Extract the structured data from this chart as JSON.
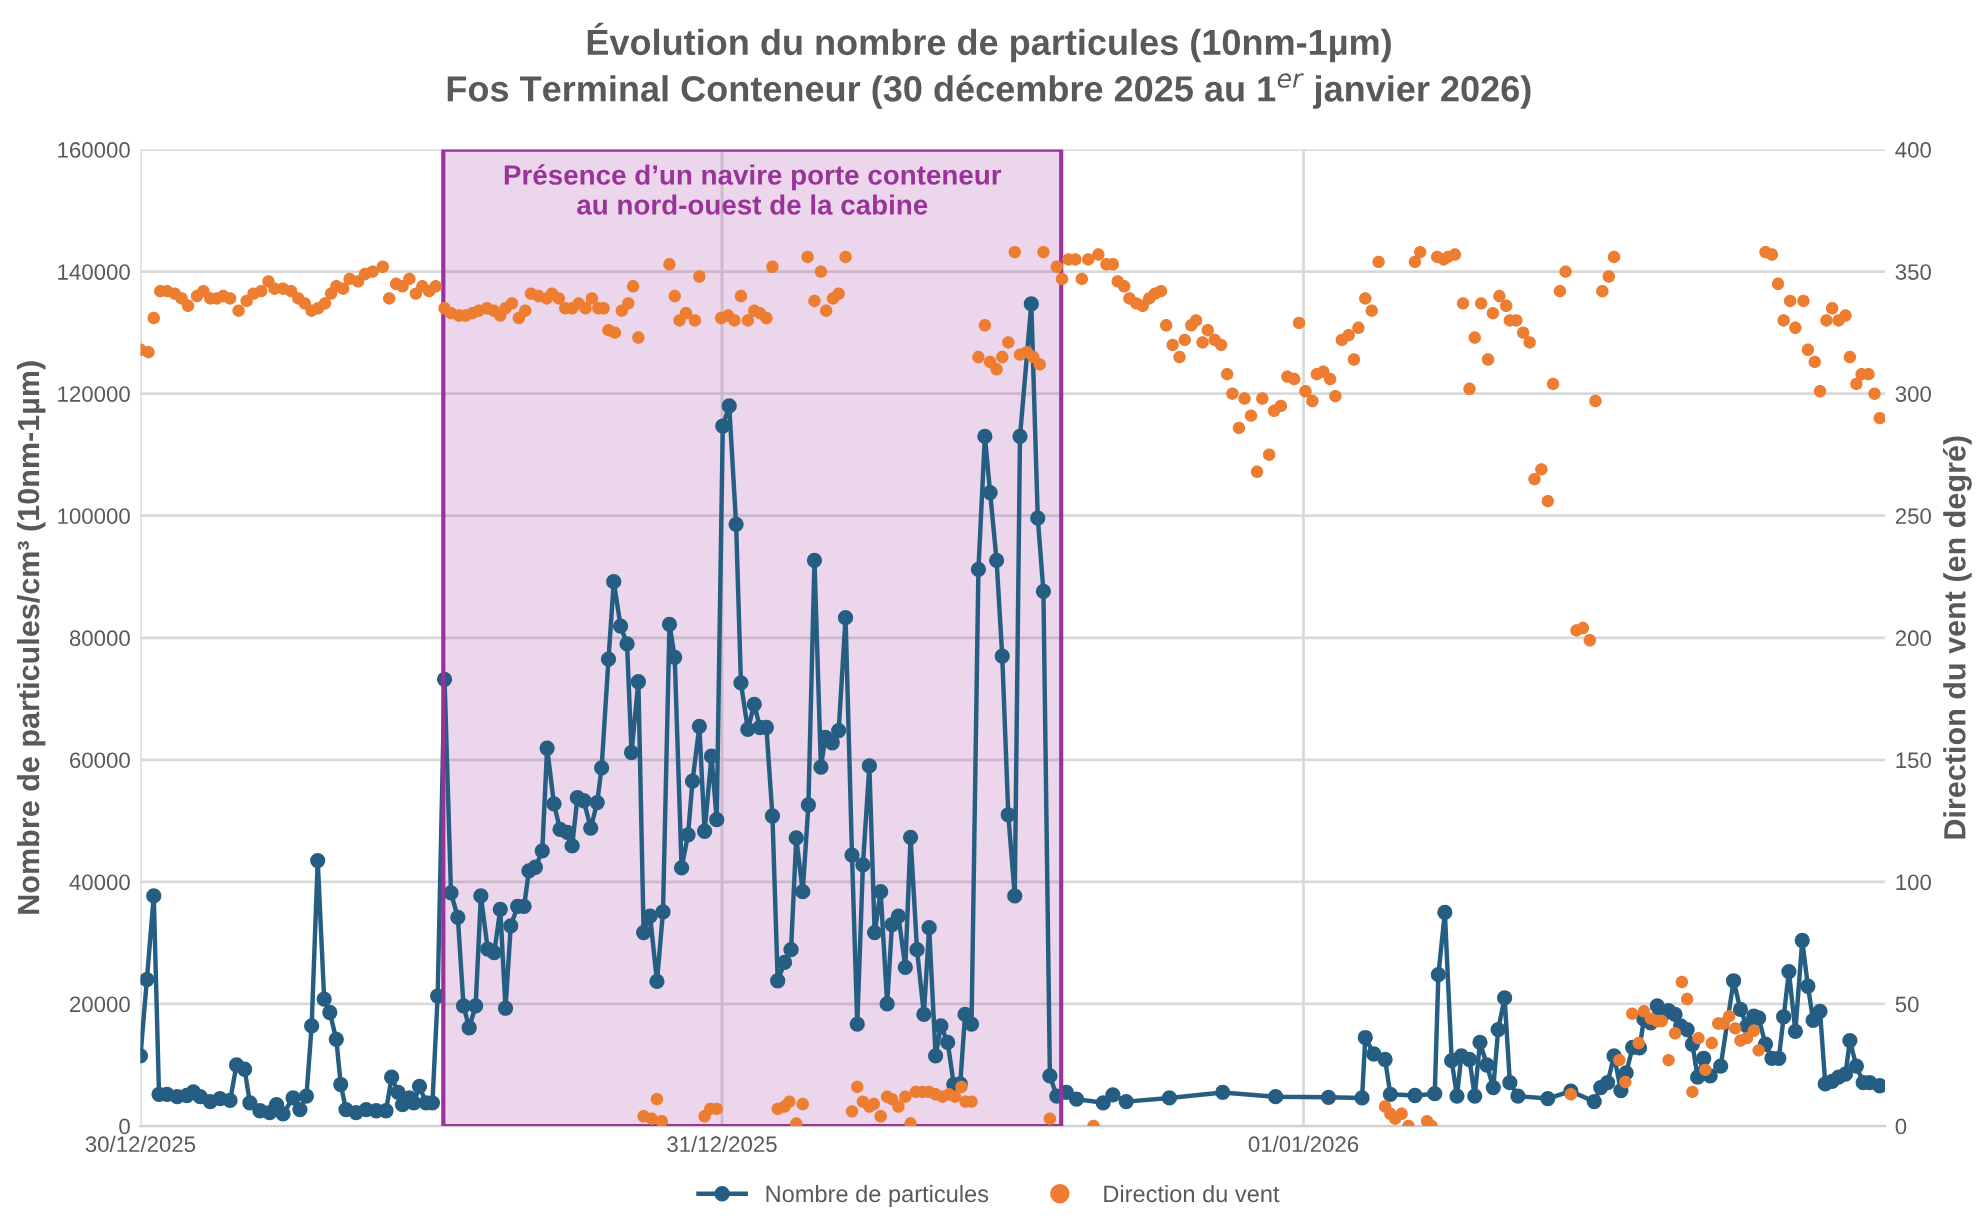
{
  "chart_data": {
    "type": "line",
    "title": "Évolution du nombre de particules (10nm-1µm)",
    "subtitle": "Fos Terminal Conteneur (30 décembre 2025 au 1$^{er}$ janvier 2026)",
    "ylabel": "Nombre de particules/cm³ (10nm-1µm)",
    "y2label": "Direction du vent (en degré)",
    "xlim": [
      "2025-12-30T00:00",
      "2026-01-02T00:00"
    ],
    "xticks": [
      {
        "value": "2025-12-30",
        "label": "30/12/2025"
      },
      {
        "value": "2025-12-31",
        "label": "31/12/2025"
      },
      {
        "value": "2026-01-01",
        "label": "01/01/2026"
      }
    ],
    "ylim": [
      0,
      160000
    ],
    "yticks": [
      0,
      20000,
      40000,
      60000,
      80000,
      100000,
      120000,
      140000,
      160000
    ],
    "y2lim": [
      0,
      400
    ],
    "y2ticks": [
      0,
      50,
      100,
      150,
      200,
      250,
      300,
      350,
      400
    ],
    "grid": true,
    "legend": "bottom",
    "bands": [
      {
        "axis": "x",
        "from": "2025-12-30T12:30",
        "to": "2025-12-31T14:00",
        "label": "Présence d’un navire porte conteneur\nau nord-ouest de la cabine",
        "color": "#993399"
      }
    ],
    "series": [
      {
        "name": "Nombre de particules",
        "marker": "circle",
        "line_style": "solid",
        "color": "#255e82",
        "x": [
          "2025-12-30T00:00",
          "2025-12-30T00:16",
          "2025-12-30T00:33",
          "2025-12-30T00:46",
          "2025-12-30T01:06",
          "2025-12-30T01:31",
          "2025-12-30T01:55",
          "2025-12-30T02:11",
          "2025-12-30T02:28",
          "2025-12-30T02:53",
          "2025-12-30T03:17",
          "2025-12-30T03:42",
          "2025-12-30T03:58",
          "2025-12-30T04:18",
          "2025-12-30T04:31",
          "2025-12-30T04:56",
          "2025-12-30T05:20",
          "2025-12-30T05:37",
          "2025-12-30T05:53",
          "2025-12-30T06:18",
          "2025-12-30T06:35",
          "2025-12-30T06:51",
          "2025-12-30T07:04",
          "2025-12-30T07:19",
          "2025-12-30T07:35",
          "2025-12-30T07:49",
          "2025-12-30T08:05",
          "2025-12-30T08:16",
          "2025-12-30T08:29",
          "2025-12-30T08:54",
          "2025-12-30T09:19",
          "2025-12-30T09:44",
          "2025-12-30T10:08",
          "2025-12-30T10:22",
          "2025-12-30T10:38",
          "2025-12-30T10:49",
          "2025-12-30T11:06",
          "2025-12-30T11:17",
          "2025-12-30T11:31",
          "2025-12-30T11:47",
          "2025-12-30T12:03",
          "2025-12-30T12:16",
          "2025-12-30T12:33",
          "2025-12-30T12:49",
          "2025-12-30T13:06",
          "2025-12-30T13:20",
          "2025-12-30T13:34",
          "2025-12-30T13:50",
          "2025-12-30T14:03",
          "2025-12-30T14:20",
          "2025-12-30T14:36",
          "2025-12-30T14:51",
          "2025-12-30T15:04",
          "2025-12-30T15:17",
          "2025-12-30T15:34",
          "2025-12-30T15:50",
          "2025-12-30T16:02",
          "2025-12-30T16:18",
          "2025-12-30T16:35",
          "2025-12-30T16:47",
          "2025-12-30T17:04",
          "2025-12-30T17:19",
          "2025-12-30T17:37",
          "2025-12-30T17:49",
          "2025-12-30T18:02",
          "2025-12-30T18:18",
          "2025-12-30T18:35",
          "2025-12-30T18:51",
          "2025-12-30T19:02",
          "2025-12-30T19:19",
          "2025-12-30T19:32",
          "2025-12-30T19:49",
          "2025-12-30T20:05",
          "2025-12-30T20:16",
          "2025-12-30T20:33",
          "2025-12-30T20:46",
          "2025-12-30T21:02",
          "2025-12-30T21:19",
          "2025-12-30T21:34",
          "2025-12-30T21:50",
          "2025-12-30T22:03",
          "2025-12-30T22:20",
          "2025-12-30T22:36",
          "2025-12-30T22:47",
          "2025-12-30T23:04",
          "2025-12-30T23:17",
          "2025-12-30T23:34",
          "2025-12-30T23:47",
          "2025-12-31T00:02",
          "2025-12-31T00:18",
          "2025-12-31T00:35",
          "2025-12-31T00:47",
          "2025-12-31T01:04",
          "2025-12-31T01:20",
          "2025-12-31T01:34",
          "2025-12-31T01:50",
          "2025-12-31T02:05",
          "2025-12-31T02:18",
          "2025-12-31T02:35",
          "2025-12-31T02:51",
          "2025-12-31T03:04",
          "2025-12-31T03:20",
          "2025-12-31T03:34",
          "2025-12-31T03:49",
          "2025-12-31T04:05",
          "2025-12-31T04:16",
          "2025-12-31T04:33",
          "2025-12-31T04:49",
          "2025-12-31T05:06",
          "2025-12-31T05:22",
          "2025-12-31T05:35",
          "2025-12-31T05:49",
          "2025-12-31T06:05",
          "2025-12-31T06:18",
          "2025-12-31T06:33",
          "2025-12-31T06:49",
          "2025-12-31T07:01",
          "2025-12-31T07:17",
          "2025-12-31T07:34",
          "2025-12-31T07:47",
          "2025-12-31T08:03",
          "2025-12-31T08:20",
          "2025-12-31T08:33",
          "2025-12-31T08:49",
          "2025-12-31T09:02",
          "2025-12-31T09:19",
          "2025-12-31T09:34",
          "2025-12-31T09:50",
          "2025-12-31T10:02",
          "2025-12-31T10:18",
          "2025-12-31T10:35",
          "2025-12-31T10:51",
          "2025-12-31T11:04",
          "2025-12-31T11:20",
          "2025-12-31T11:34",
          "2025-12-31T11:49",
          "2025-12-31T12:05",
          "2025-12-31T12:18",
          "2025-12-31T12:46",
          "2025-12-31T13:02",
          "2025-12-31T13:16",
          "2025-12-31T13:32",
          "2025-12-31T13:49",
          "2025-12-31T14:13",
          "2025-12-31T14:38",
          "2025-12-31T15:44",
          "2025-12-31T16:08",
          "2025-12-31T16:41",
          "2025-12-31T18:28",
          "2025-12-31T20:40",
          "2025-12-31T22:51",
          "2026-01-01T01:02",
          "2026-01-01T02:25",
          "2026-01-01T02:33",
          "2026-01-01T02:54",
          "2026-01-01T03:22",
          "2026-01-01T03:35",
          "2026-01-01T04:36",
          "2026-01-01T05:25",
          "2026-01-01T05:34",
          "2026-01-01T05:50",
          "2026-01-01T06:07",
          "2026-01-01T06:20",
          "2026-01-01T06:31",
          "2026-01-01T06:51",
          "2026-01-01T07:04",
          "2026-01-01T07:17",
          "2026-01-01T07:34",
          "2026-01-01T07:50",
          "2026-01-01T08:02",
          "2026-01-01T08:18",
          "2026-01-01T08:31",
          "2026-01-01T08:51",
          "2026-01-01T10:05",
          "2026-01-01T11:02",
          "2026-01-01T12:00",
          "2026-01-01T12:16",
          "2026-01-01T12:33",
          "2026-01-01T12:49",
          "2026-01-01T13:06",
          "2026-01-01T13:19",
          "2026-01-01T13:35",
          "2026-01-01T13:52",
          "2026-01-01T14:03",
          "2026-01-01T14:20",
          "2026-01-01T14:36",
          "2026-01-01T14:47",
          "2026-01-01T15:04",
          "2026-01-01T15:20",
          "2026-01-01T15:34",
          "2026-01-01T15:50",
          "2026-01-01T16:03",
          "2026-01-01T16:16",
          "2026-01-01T16:31",
          "2026-01-01T16:47",
          "2026-01-01T17:13",
          "2026-01-01T17:45",
          "2026-01-01T18:02",
          "2026-01-01T18:18",
          "2026-01-01T18:35",
          "2026-01-01T18:47",
          "2026-01-01T19:04",
          "2026-01-01T19:20",
          "2026-01-01T19:37",
          "2026-01-01T19:49",
          "2026-01-01T20:02",
          "2026-01-01T20:18",
          "2026-01-01T20:35",
          "2026-01-01T20:49",
          "2026-01-01T21:02",
          "2026-01-01T21:19",
          "2026-01-01T21:32",
          "2026-01-01T21:49",
          "2026-01-01T22:05",
          "2026-01-01T22:22",
          "2026-01-01T22:33",
          "2026-01-01T22:49",
          "2026-01-01T23:06",
          "2026-01-01T23:22",
          "2026-01-01T23:47"
        ],
        "values": [
          11500,
          24000,
          37700,
          5200,
          5200,
          4800,
          5000,
          5600,
          4800,
          4000,
          4500,
          4200,
          10000,
          9300,
          3800,
          2500,
          2200,
          3500,
          2000,
          4600,
          2700,
          4900,
          16400,
          43500,
          20800,
          18600,
          14200,
          6800,
          2700,
          2200,
          2700,
          2500,
          2500,
          8000,
          5500,
          3500,
          4600,
          3800,
          6500,
          3800,
          3800,
          21300,
          73200,
          38200,
          34200,
          19700,
          16100,
          19700,
          37700,
          29000,
          28400,
          35500,
          19300,
          32800,
          36000,
          36000,
          41800,
          42400,
          45100,
          61900,
          52800,
          48600,
          48100,
          45900,
          53800,
          53300,
          48800,
          53000,
          58700,
          76500,
          89200,
          81900,
          79000,
          61200,
          72800,
          31700,
          34400,
          23700,
          35100,
          82200,
          76800,
          42300,
          47700,
          56500,
          65500,
          48300,
          60600,
          50200,
          114700,
          118000,
          98600,
          72600,
          65000,
          69100,
          65300,
          65300,
          50800,
          23800,
          26800,
          28900,
          47200,
          38400,
          52600,
          92700,
          58800,
          63700,
          62800,
          64800,
          83300,
          44400,
          16700,
          42800,
          59000,
          31700,
          38400,
          20000,
          33000,
          34400,
          26000,
          47300,
          28900,
          18300,
          32500,
          11500,
          16400,
          13700,
          6800,
          6900,
          18300,
          16700,
          91200,
          113000,
          103800,
          92700,
          77000,
          51000,
          37700,
          113000,
          134700,
          99600,
          87600,
          8200,
          4900,
          5500,
          4400,
          3800,
          5100,
          4000,
          4600,
          5500,
          4800,
          4700,
          4600,
          14500,
          11800,
          10900,
          5200,
          5000,
          5300,
          24800,
          35000,
          10700,
          4900,
          11500,
          10900,
          4900,
          13700,
          10000,
          6300,
          15800,
          21000,
          7100,
          4900,
          4500,
          5700,
          4000,
          6300,
          7100,
          11500,
          5800,
          8700,
          12900,
          12800,
          17500,
          16900,
          19700,
          18000,
          18900,
          18300,
          16400,
          15800,
          13400,
          8000,
          11100,
          8200,
          9800,
          23800,
          19100,
          16400,
          18000,
          17700,
          13400,
          11100,
          11100,
          17900,
          25300,
          15500,
          30400,
          22900,
          17300,
          18800,
          6900,
          7300,
          8000,
          8500,
          14000,
          9800,
          7100,
          7100,
          6600
        ]
      },
      {
        "name": "Direction du vent",
        "type": "scatter",
        "axis": "y2",
        "marker": "circle",
        "color": "#ed7d31",
        "x": [
          "2025-12-30T00:00",
          "2025-12-30T00:20",
          "2025-12-30T00:33",
          "2025-12-30T00:49",
          "2025-12-30T01:06",
          "2025-12-30T01:25",
          "2025-12-30T01:42",
          "2025-12-30T01:58",
          "2025-12-30T02:20",
          "2025-12-30T02:36",
          "2025-12-30T02:53",
          "2025-12-30T03:09",
          "2025-12-30T03:25",
          "2025-12-30T03:42",
          "2025-12-30T04:03",
          "2025-12-30T04:23",
          "2025-12-30T04:40",
          "2025-12-30T04:59",
          "2025-12-30T05:17",
          "2025-12-30T05:32",
          "2025-12-30T05:53",
          "2025-12-30T06:13",
          "2025-12-30T06:31",
          "2025-12-30T06:47",
          "2025-12-30T07:04",
          "2025-12-30T07:20",
          "2025-12-30T07:37",
          "2025-12-30T07:52",
          "2025-12-30T08:05",
          "2025-12-30T08:22",
          "2025-12-30T08:38",
          "2025-12-30T08:59",
          "2025-12-30T09:16",
          "2025-12-30T09:35",
          "2025-12-30T10:00",
          "2025-12-30T10:16",
          "2025-12-30T10:33",
          "2025-12-30T10:49",
          "2025-12-30T11:06",
          "2025-12-30T11:22",
          "2025-12-30T11:38",
          "2025-12-30T11:55",
          "2025-12-30T12:11",
          "2025-12-30T12:33",
          "2025-12-30T12:49",
          "2025-12-30T13:09",
          "2025-12-30T13:25",
          "2025-12-30T13:42",
          "2025-12-30T13:58",
          "2025-12-30T14:18",
          "2025-12-30T14:35",
          "2025-12-30T14:51",
          "2025-12-30T15:04",
          "2025-12-30T15:20",
          "2025-12-30T15:37",
          "2025-12-30T15:53",
          "2025-12-30T16:07",
          "2025-12-30T16:26",
          "2025-12-30T16:46",
          "2025-12-30T16:59",
          "2025-12-30T17:16",
          "2025-12-30T17:32",
          "2025-12-30T17:49",
          "2025-12-30T18:05",
          "2025-12-30T18:22",
          "2025-12-30T18:38",
          "2025-12-30T18:54",
          "2025-12-30T19:07",
          "2025-12-30T19:19",
          "2025-12-30T19:35",
          "2025-12-30T19:52",
          "2025-12-30T20:08",
          "2025-12-30T20:20",
          "2025-12-30T20:33",
          "2025-12-30T20:46",
          "2025-12-30T21:06",
          "2025-12-30T21:19",
          "2025-12-30T21:31",
          "2025-12-30T21:50",
          "2025-12-30T22:03",
          "2025-12-30T22:15",
          "2025-12-30T22:31",
          "2025-12-30T22:53",
          "2025-12-30T23:04",
          "2025-12-30T23:17",
          "2025-12-30T23:31",
          "2025-12-30T23:47",
          "2025-12-30T23:58",
          "2025-12-31T00:15",
          "2025-12-31T00:31",
          "2025-12-31T00:47",
          "2025-12-31T01:04",
          "2025-12-31T01:20",
          "2025-12-31T01:34",
          "2025-12-31T01:50",
          "2025-12-31T02:05",
          "2025-12-31T02:18",
          "2025-12-31T02:35",
          "2025-12-31T02:47",
          "2025-12-31T03:04",
          "2025-12-31T03:20",
          "2025-12-31T03:32",
          "2025-12-31T03:49",
          "2025-12-31T04:05",
          "2025-12-31T04:18",
          "2025-12-31T04:35",
          "2025-12-31T04:49",
          "2025-12-31T05:06",
          "2025-12-31T05:22",
          "2025-12-31T05:35",
          "2025-12-31T05:49",
          "2025-12-31T06:05",
          "2025-12-31T06:16",
          "2025-12-31T06:33",
          "2025-12-31T06:49",
          "2025-12-31T07:01",
          "2025-12-31T07:17",
          "2025-12-31T07:34",
          "2025-12-31T07:47",
          "2025-12-31T08:00",
          "2025-12-31T08:16",
          "2025-12-31T08:33",
          "2025-12-31T08:49",
          "2025-12-31T09:06",
          "2025-12-31T09:22",
          "2025-12-31T09:37",
          "2025-12-31T09:53",
          "2025-12-31T10:03",
          "2025-12-31T10:18",
          "2025-12-31T10:35",
          "2025-12-31T10:51",
          "2025-12-31T11:04",
          "2025-12-31T11:20",
          "2025-12-31T11:34",
          "2025-12-31T11:49",
          "2025-12-31T12:05",
          "2025-12-31T12:18",
          "2025-12-31T12:35",
          "2025-12-31T12:51",
          "2025-12-31T13:07",
          "2025-12-31T13:16",
          "2025-12-31T13:32",
          "2025-12-31T13:49",
          "2025-12-31T14:02",
          "2025-12-31T14:18",
          "2025-12-31T14:35",
          "2025-12-31T14:51",
          "2025-12-31T15:07",
          "2025-12-31T15:20",
          "2025-12-31T15:32",
          "2025-12-31T15:52",
          "2025-12-31T16:08",
          "2025-12-31T16:20",
          "2025-12-31T16:36",
          "2025-12-31T16:49",
          "2025-12-31T17:06",
          "2025-12-31T17:22",
          "2025-12-31T17:38",
          "2025-12-31T17:52",
          "2025-12-31T18:07",
          "2025-12-31T18:20",
          "2025-12-31T18:36",
          "2025-12-31T18:53",
          "2025-12-31T19:06",
          "2025-12-31T19:22",
          "2025-12-31T19:34",
          "2025-12-31T19:50",
          "2025-12-31T20:03",
          "2025-12-31T20:20",
          "2025-12-31T20:36",
          "2025-12-31T20:51",
          "2025-12-31T21:04",
          "2025-12-31T21:20",
          "2025-12-31T21:34",
          "2025-12-31T21:50",
          "2025-12-31T22:05",
          "2025-12-31T22:18",
          "2025-12-31T22:35",
          "2025-12-31T22:47",
          "2025-12-31T23:04",
          "2025-12-31T23:20",
          "2025-12-31T23:37",
          "2025-12-31T23:49",
          "2026-01-01T00:05",
          "2026-01-01T00:22",
          "2026-01-01T00:33",
          "2026-01-01T00:49",
          "2026-01-01T01:06",
          "2026-01-01T01:19",
          "2026-01-01T01:35",
          "2026-01-01T01:52",
          "2026-01-01T02:05",
          "2026-01-01T02:16",
          "2026-01-01T02:33",
          "2026-01-01T02:49",
          "2026-01-01T03:06",
          "2026-01-01T03:22",
          "2026-01-01T03:35",
          "2026-01-01T03:47",
          "2026-01-01T04:03",
          "2026-01-01T04:20",
          "2026-01-01T04:36",
          "2026-01-01T04:49",
          "2026-01-01T05:06",
          "2026-01-01T05:17",
          "2026-01-01T05:31",
          "2026-01-01T05:47",
          "2026-01-01T05:58",
          "2026-01-01T06:15",
          "2026-01-01T06:35",
          "2026-01-01T06:51",
          "2026-01-01T07:04",
          "2026-01-01T07:20",
          "2026-01-01T07:37",
          "2026-01-01T07:49",
          "2026-01-01T08:05",
          "2026-01-01T08:22",
          "2026-01-01T08:31",
          "2026-01-01T08:47",
          "2026-01-01T09:04",
          "2026-01-01T09:20",
          "2026-01-01T09:32",
          "2026-01-01T09:49",
          "2026-01-01T10:05",
          "2026-01-01T10:18",
          "2026-01-01T10:35",
          "2026-01-01T10:49",
          "2026-01-01T11:02",
          "2026-01-01T11:16",
          "2026-01-01T11:32",
          "2026-01-01T11:49",
          "2026-01-01T12:03",
          "2026-01-01T12:20",
          "2026-01-01T12:36",
          "2026-01-01T12:49",
          "2026-01-01T13:02",
          "2026-01-01T13:17",
          "2026-01-01T13:34",
          "2026-01-01T13:50",
          "2026-01-01T14:03",
          "2026-01-01T14:20",
          "2026-01-01T14:36",
          "2026-01-01T14:47",
          "2026-01-01T15:04",
          "2026-01-01T15:20",
          "2026-01-01T15:37",
          "2026-01-01T15:50",
          "2026-01-01T16:03",
          "2026-01-01T16:18",
          "2026-01-01T16:35",
          "2026-01-01T16:51",
          "2026-01-01T17:07",
          "2026-01-01T17:20",
          "2026-01-01T17:34",
          "2026-01-01T17:49",
          "2026-01-01T18:02",
          "2026-01-01T18:18",
          "2026-01-01T18:35",
          "2026-01-01T18:47",
          "2026-01-01T19:04",
          "2026-01-01T19:20",
          "2026-01-01T19:35",
          "2026-01-01T19:49",
          "2026-01-01T20:05",
          "2026-01-01T20:18",
          "2026-01-01T20:38",
          "2026-01-01T20:49",
          "2026-01-01T21:06",
          "2026-01-01T21:19",
          "2026-01-01T21:35",
          "2026-01-01T21:49",
          "2026-01-01T22:05",
          "2026-01-01T22:22",
          "2026-01-01T22:33",
          "2026-01-01T22:49",
          "2026-01-01T23:02",
          "2026-01-01T23:19",
          "2026-01-01T23:34",
          "2026-01-01T23:47"
        ],
        "values": [
          318,
          317,
          331,
          342,
          342,
          341,
          339,
          336,
          340,
          342,
          339,
          339,
          340,
          339,
          334,
          338,
          341,
          342,
          346,
          343,
          343,
          342,
          339,
          337,
          334,
          335,
          337,
          341,
          344,
          343,
          347,
          346,
          349,
          350,
          352,
          339,
          345,
          344,
          347,
          341,
          344,
          342,
          344,
          335,
          333,
          332,
          332,
          333,
          334,
          335,
          334,
          332,
          335,
          337,
          331,
          334,
          341,
          340,
          339,
          341,
          339,
          335,
          335,
          337,
          335,
          339,
          335,
          335,
          326,
          325,
          334,
          337,
          344,
          323,
          4,
          3,
          11,
          2,
          353,
          340,
          330,
          333,
          330,
          348,
          4,
          7,
          7,
          331,
          332,
          330,
          340,
          330,
          334,
          333,
          331,
          352,
          7,
          8,
          10,
          1,
          9,
          356,
          338,
          350,
          334,
          339,
          341,
          356,
          6,
          16,
          10,
          8,
          9,
          4,
          12,
          11,
          8,
          12,
          1,
          14,
          14,
          14,
          13,
          12,
          13,
          12,
          16,
          10,
          10,
          315,
          328,
          313,
          310,
          315,
          321,
          358,
          316,
          317,
          315,
          312,
          358,
          3,
          352,
          347,
          355,
          355,
          347,
          355,
          0,
          357,
          353,
          353,
          346,
          344,
          339,
          337,
          336,
          339,
          341,
          342,
          328,
          320,
          315,
          322,
          328,
          330,
          321,
          326,
          322,
          320,
          308,
          300,
          286,
          298,
          291,
          268,
          298,
          275,
          293,
          295,
          307,
          306,
          329,
          301,
          297,
          308,
          309,
          306,
          299,
          322,
          324,
          314,
          327,
          339,
          334,
          354,
          8,
          5,
          3,
          5,
          0,
          354,
          358,
          2,
          0,
          356,
          355,
          356,
          357,
          337,
          302,
          323,
          337,
          314,
          333,
          340,
          336,
          330,
          330,
          325,
          321,
          265,
          269,
          256,
          304,
          342,
          350,
          13,
          203,
          204,
          199,
          297,
          342,
          348,
          356,
          27,
          18,
          46,
          34,
          47,
          44,
          43,
          43,
          27,
          38,
          59,
          52,
          14,
          36,
          23,
          34,
          42,
          42,
          45,
          40,
          35,
          36,
          39,
          31,
          358,
          357,
          345,
          330,
          338,
          327,
          338,
          318,
          313,
          301,
          330,
          335,
          330,
          332,
          315,
          304,
          308,
          308,
          300,
          290
        ]
      }
    ]
  }
}
